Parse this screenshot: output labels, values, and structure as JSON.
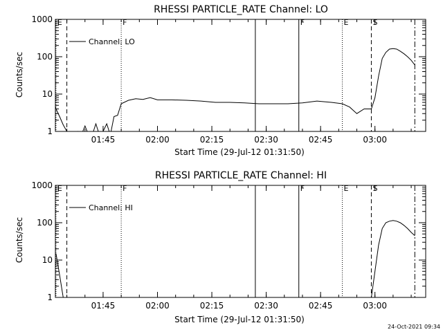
{
  "footer": {
    "timestamp": "24-Oct-2021 09:34"
  },
  "chart_data": [
    {
      "type": "line",
      "title": "RHESSI PARTICLE_RATE Channel: LO",
      "xlabel": "Start Time (29-Jul-12 01:31:50)",
      "ylabel": "Counts/sec",
      "y_scale": "log",
      "ylim": [
        1,
        1000
      ],
      "xlim": [
        "01:31:50",
        "03:14"
      ],
      "x_ticks": [
        "01:45",
        "02:00",
        "02:15",
        "02:30",
        "02:45",
        "03:00"
      ],
      "y_ticks": [
        "1",
        "10",
        "100",
        "1000"
      ],
      "legend": {
        "placement": "top-left",
        "entries": [
          "Channel: LO"
        ]
      },
      "markers": [
        {
          "time": "01:32",
          "label": "E",
          "style": "dotted"
        },
        {
          "time": "01:35",
          "label": "",
          "style": "dashed"
        },
        {
          "time": "01:50",
          "label": "F",
          "style": "dotted"
        },
        {
          "time": "02:27",
          "label": "",
          "style": "solid"
        },
        {
          "time": "02:39",
          "label": "F",
          "style": "solid"
        },
        {
          "time": "02:51",
          "label": "E",
          "style": "dotted"
        },
        {
          "time": "02:59",
          "label": "S",
          "style": "dashed"
        },
        {
          "time": "03:11",
          "label": "",
          "style": "dashdot"
        }
      ],
      "series": [
        {
          "name": "Channel: LO",
          "x": [
            "01:31",
            "01:32",
            "01:33",
            "01:34",
            "01:35",
            "01:36",
            "01:37",
            "01:38",
            "01:39",
            "01:40",
            "01:41",
            "01:42",
            "01:43",
            "01:44",
            "01:45",
            "01:46",
            "01:47",
            "01:48",
            "01:49",
            "01:50",
            "01:52",
            "01:54",
            "01:56",
            "01:58",
            "02:00",
            "02:04",
            "02:08",
            "02:12",
            "02:16",
            "02:20",
            "02:24",
            "02:28",
            "02:32",
            "02:36",
            "02:40",
            "02:44",
            "02:48",
            "02:51",
            "02:53",
            "02:55",
            "02:57",
            "02:59",
            "03:00",
            "03:01",
            "03:02",
            "03:03",
            "03:04",
            "03:05",
            "03:06",
            "03:07",
            "03:08",
            "03:09",
            "03:10",
            "03:11"
          ],
          "y": [
            10,
            4,
            2.5,
            1.5,
            1,
            0.8,
            0.8,
            1,
            0.8,
            1.4,
            0.8,
            0.8,
            1.6,
            0.8,
            1,
            1.6,
            0.8,
            2.5,
            2.7,
            5.5,
            6.8,
            7.5,
            7.2,
            8,
            7,
            7,
            6.8,
            6.5,
            6,
            6,
            5.8,
            5.5,
            5.5,
            5.5,
            5.8,
            6.5,
            6,
            5.5,
            4.5,
            3,
            4,
            4,
            8,
            30,
            90,
            130,
            160,
            165,
            160,
            140,
            120,
            100,
            80,
            60
          ]
        }
      ]
    },
    {
      "type": "line",
      "title": "RHESSI PARTICLE_RATE Channel: HI",
      "xlabel": "Start Time (29-Jul-12 01:31:50)",
      "ylabel": "Counts/sec",
      "y_scale": "log",
      "ylim": [
        1,
        1000
      ],
      "xlim": [
        "01:31:50",
        "03:14"
      ],
      "x_ticks": [
        "01:45",
        "02:00",
        "02:15",
        "02:30",
        "02:45",
        "03:00"
      ],
      "y_ticks": [
        "1",
        "10",
        "100",
        "1000"
      ],
      "legend": {
        "placement": "top-left",
        "entries": [
          "Channel: HI"
        ]
      },
      "markers": [
        {
          "time": "01:32",
          "label": "E",
          "style": "dotted"
        },
        {
          "time": "01:35",
          "label": "",
          "style": "dashed"
        },
        {
          "time": "01:50",
          "label": "F",
          "style": "dotted"
        },
        {
          "time": "02:27",
          "label": "",
          "style": "solid"
        },
        {
          "time": "02:39",
          "label": "F",
          "style": "solid"
        },
        {
          "time": "02:51",
          "label": "E",
          "style": "dotted"
        },
        {
          "time": "02:59",
          "label": "S",
          "style": "dashed"
        },
        {
          "time": "03:11",
          "label": "",
          "style": "dashdot"
        }
      ],
      "series": [
        {
          "name": "Channel: HI",
          "x": [
            "01:32",
            "01:33",
            "01:34",
            "02:59",
            "03:00",
            "03:01",
            "03:02",
            "03:03",
            "03:04",
            "03:05",
            "03:06",
            "03:07",
            "03:08",
            "03:09",
            "03:10",
            "03:11"
          ],
          "y": [
            15,
            4,
            1,
            1,
            5,
            25,
            70,
            100,
            110,
            115,
            110,
            100,
            85,
            70,
            55,
            45
          ]
        }
      ]
    }
  ]
}
